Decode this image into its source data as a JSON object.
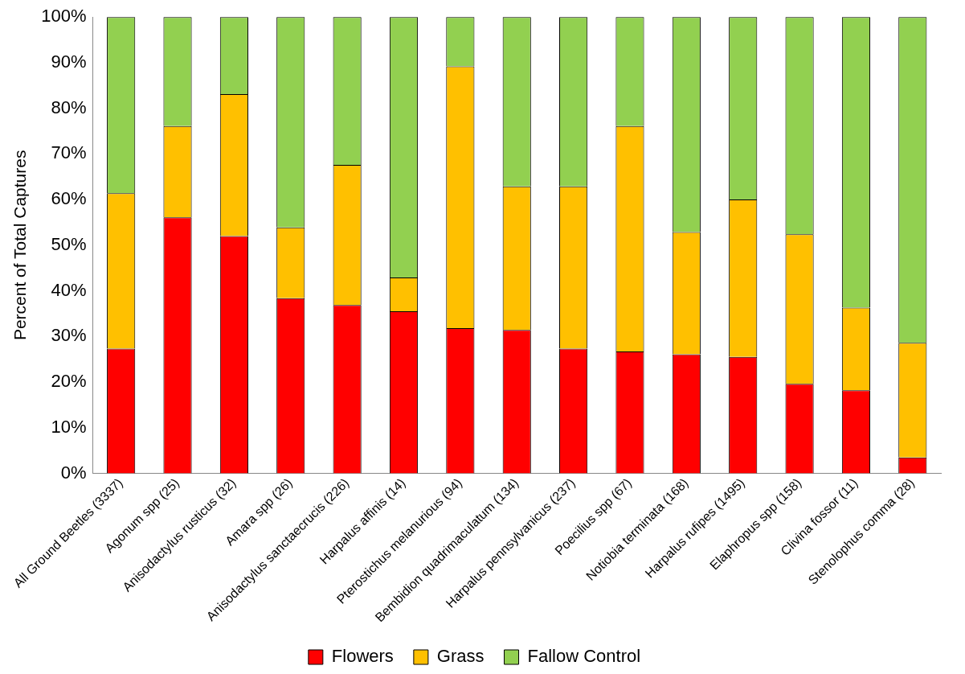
{
  "chart_data": {
    "type": "bar",
    "stacked": true,
    "ylabel": "Percent of Total Captures",
    "categories": [
      "All Ground Beetles (3337)",
      "Agonum spp (25)",
      "Anisodactylus rusticus (32)",
      "Amara spp (26)",
      "Anisodactylus sanctaecrucis (226)",
      "Harpalus affinis (14)",
      "Pterostichus melanurious (94)",
      "Bembidion quadrimaculatum (134)",
      "Harpalus pennsylvanicus (237)",
      "Poecilius spp (67)",
      "Notiobia terminata (168)",
      "Harpalus rufipes (1495)",
      "Elaphropus spp (158)",
      "Clivina fossor (11)",
      "Stenolophus comma (28)"
    ],
    "series": [
      {
        "name": "Flowers",
        "color": "#ff0000",
        "values": [
          27.3,
          56.1,
          52.0,
          38.4,
          36.9,
          35.5,
          31.8,
          31.4,
          27.3,
          26.7,
          26.1,
          25.5,
          19.6,
          18.2,
          3.5
        ]
      },
      {
        "name": "Grass",
        "color": "#ffc000",
        "values": [
          34.1,
          20.0,
          31.1,
          15.5,
          30.7,
          7.4,
          57.4,
          31.5,
          35.6,
          49.4,
          26.8,
          34.5,
          32.8,
          18.1,
          25.1
        ]
      },
      {
        "name": "Fallow Control",
        "color": "#92d050",
        "values": [
          38.6,
          23.9,
          16.9,
          46.1,
          32.4,
          57.1,
          10.8,
          37.1,
          37.1,
          23.9,
          47.1,
          40.0,
          47.6,
          63.7,
          71.4
        ]
      }
    ],
    "ylim": [
      0,
      100
    ],
    "yticks": [
      {
        "value": 0,
        "label": "0%"
      },
      {
        "value": 10,
        "label": "10%"
      },
      {
        "value": 20,
        "label": "20%"
      },
      {
        "value": 30,
        "label": "30%"
      },
      {
        "value": 40,
        "label": "40%"
      },
      {
        "value": 50,
        "label": "50%"
      },
      {
        "value": 60,
        "label": "60%"
      },
      {
        "value": 70,
        "label": "70%"
      },
      {
        "value": 80,
        "label": "80%"
      },
      {
        "value": 90,
        "label": "90%"
      },
      {
        "value": 100,
        "label": "100%"
      }
    ],
    "grid": false,
    "legend": "bottom"
  }
}
